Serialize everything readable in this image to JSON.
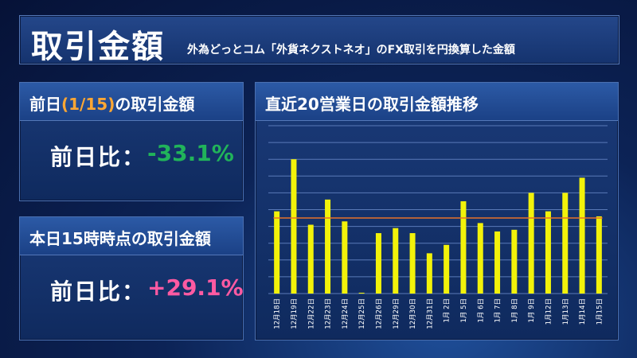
{
  "header": {
    "title": "取引金額",
    "subtitle": "外為どっとコム「外貨ネクストネオ」のFX取引を円換算した金額"
  },
  "card_prev_day": {
    "title_prefix": "前日",
    "title_date": "(1/15)",
    "title_suffix": "の取引金額",
    "label": "前日比：",
    "value": "-33.1%",
    "value_color": "#21b45a"
  },
  "card_today": {
    "title": "本日15時時点の取引金額",
    "label": "前日比：",
    "value": "+29.1%",
    "value_color": "#ff5aa2"
  },
  "chart_panel": {
    "title": "直近20営業日の取引金額推移"
  },
  "chart_data": {
    "type": "bar",
    "title": "直近20営業日の取引金額推移",
    "categories": [
      "12月18日",
      "12月19日",
      "12月22日",
      "12月23日",
      "12月24日",
      "12月25日",
      "12月26日",
      "12月29日",
      "12月30日",
      "12月31日",
      "1月 2日",
      "1月 5日",
      "1月 6日",
      "1月 7日",
      "1月 8日",
      "1月 9日",
      "1月12日",
      "1月13日",
      "1月14日",
      "1月15日"
    ],
    "values": [
      49,
      80,
      41,
      56,
      43,
      0.5,
      36,
      39,
      36,
      24,
      29,
      55,
      42,
      37,
      38,
      60,
      49,
      60,
      69,
      46
    ],
    "reference_line": 45,
    "ylim": [
      0,
      100
    ],
    "bar_color": "#f2f20a",
    "line_color": "#e8732a",
    "grid": true,
    "yaxis_labels": false
  }
}
